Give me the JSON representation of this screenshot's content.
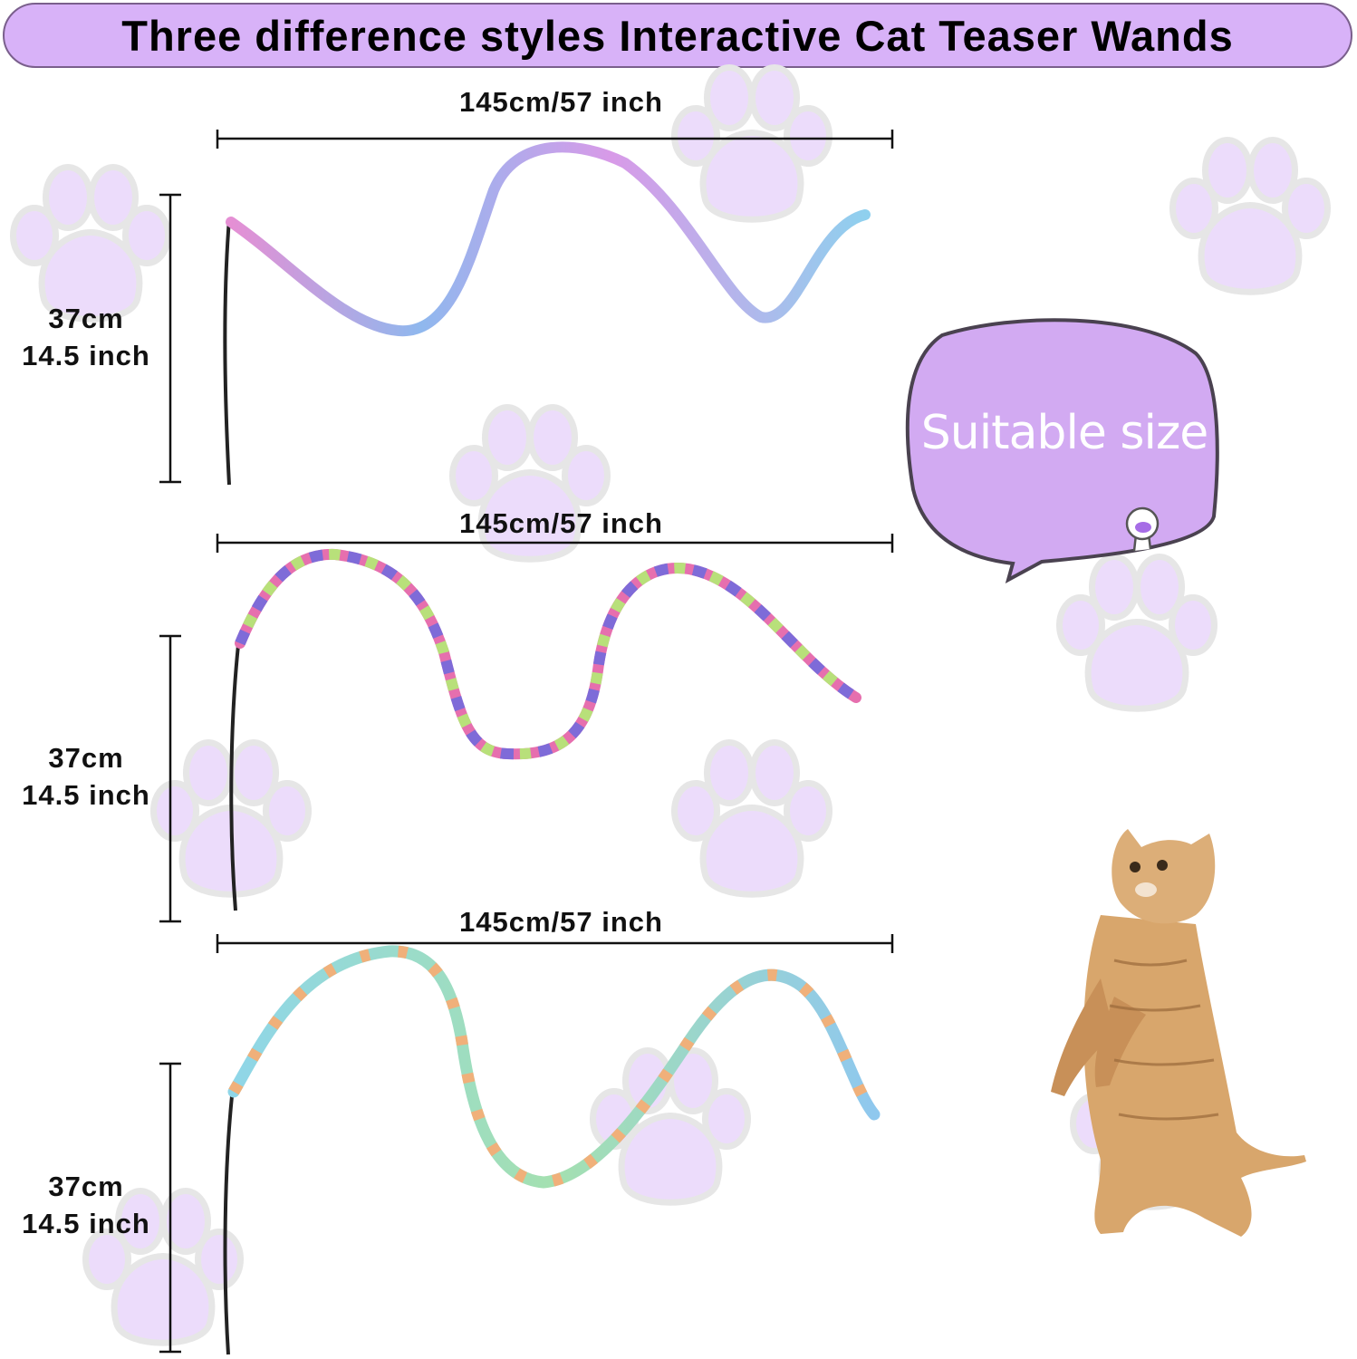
{
  "title": "Three difference styles Interactive Cat Teaser Wands",
  "wands": [
    {
      "length_label": "145cm/57 inch",
      "height_cm": "37cm",
      "height_in": "14.5 inch",
      "style": "tie-dye pink blue"
    },
    {
      "length_label": "145cm/57 inch",
      "height_cm": "37cm",
      "height_in": "14.5 inch",
      "style": "rainbow striped"
    },
    {
      "length_label": "145cm/57 inch",
      "height_cm": "37cm",
      "height_in": "14.5 inch",
      "style": "pastel striped"
    }
  ],
  "bubble": {
    "text": "Suitable size",
    "icon": "cat-paw-icon"
  },
  "colors": {
    "banner": "#d8b2f8",
    "bubble": "#d2aaf2",
    "paw": "#ecdcfb"
  }
}
